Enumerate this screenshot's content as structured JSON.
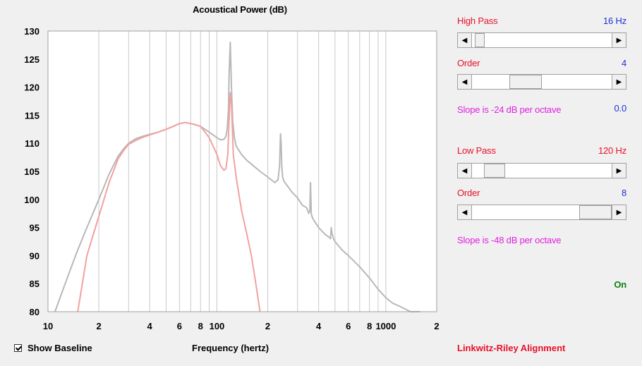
{
  "chart": {
    "title": "Acoustical Power (dB)",
    "x_axis_title": "Frequency (hertz)"
  },
  "show_baseline": {
    "label": "Show Baseline",
    "checked": true
  },
  "alignment_label": "Linkwitz-Riley Alignment",
  "status": "On",
  "high_pass": {
    "label": "High Pass",
    "value": "16 Hz",
    "order_label": "Order",
    "order_value": "4",
    "slope_text": "Slope is -24 dB per octave",
    "slope_value": "0.0",
    "slider_fraction": 0.02,
    "order_fraction": 0.35
  },
  "low_pass": {
    "label": "Low Pass",
    "value": "120 Hz",
    "order_label": "Order",
    "order_value": "8",
    "slope_text": "Slope is -48 dB per octave",
    "slider_fraction": 0.1,
    "order_fraction": 1.0
  },
  "colors": {
    "baseline_curve": "#b8b8b8",
    "filtered_curve": "#f4a0a0",
    "grid": "#c8c8c8",
    "plot_bg": "#ffffff"
  },
  "chart_data": {
    "type": "line",
    "x_scale": "log",
    "xlim": [
      10,
      2000
    ],
    "ylim": [
      80,
      130
    ],
    "y_ticks": [
      "130",
      "125",
      "120",
      "115",
      "110",
      "105",
      "100",
      "95",
      "90",
      "85",
      "80"
    ],
    "x_ticks": [
      {
        "v": 10,
        "label": "10"
      },
      {
        "v": 20,
        "label": "2"
      },
      {
        "v": 40,
        "label": "4"
      },
      {
        "v": 60,
        "label": "6"
      },
      {
        "v": 80,
        "label": "8"
      },
      {
        "v": 100,
        "label": "100"
      },
      {
        "v": 200,
        "label": "2"
      },
      {
        "v": 400,
        "label": "4"
      },
      {
        "v": 600,
        "label": "6"
      },
      {
        "v": 800,
        "label": "8"
      },
      {
        "v": 1000,
        "label": "1000"
      },
      {
        "v": 2000,
        "label": "2"
      }
    ],
    "series": [
      {
        "role": "baseline",
        "x": [
          11,
          13,
          15,
          17,
          20,
          23,
          26,
          28,
          30,
          33,
          36,
          40,
          45,
          50,
          55,
          60,
          65,
          70,
          75,
          80,
          85,
          90,
          95,
          100,
          105,
          110,
          113,
          115,
          117,
          118,
          120,
          122,
          124,
          127,
          130,
          140,
          150,
          160,
          180,
          200,
          220,
          230,
          235,
          238,
          240,
          242,
          245,
          250,
          260,
          280,
          300,
          320,
          340,
          350,
          355,
          358,
          360,
          362,
          365,
          370,
          380,
          400,
          420,
          440,
          460,
          470,
          475,
          480,
          490,
          500,
          550,
          600,
          700,
          800,
          900,
          1000,
          1100,
          1200,
          1400,
          1600
        ],
        "y": [
          80,
          86,
          91,
          95,
          100,
          104.5,
          107.7,
          109,
          110,
          110.8,
          111.2,
          111.6,
          112,
          112.5,
          113,
          113.5,
          113.7,
          113.5,
          113.3,
          113,
          112.5,
          112,
          111.5,
          111,
          110.6,
          110.7,
          111.2,
          112.5,
          116,
          122,
          128,
          120,
          114,
          111,
          109.5,
          108,
          107,
          106.3,
          105,
          104,
          103,
          103.5,
          106,
          111.7,
          110,
          106,
          104,
          103.2,
          102.5,
          101.2,
          100.3,
          99,
          98.5,
          97.5,
          98,
          103,
          100,
          97.5,
          97,
          96.6,
          96,
          95,
          94.3,
          93.7,
          93.3,
          93,
          95,
          94,
          93,
          92.5,
          91,
          90,
          88,
          86,
          84,
          82.5,
          81.5,
          81,
          80,
          80
        ]
      },
      {
        "role": "filtered",
        "x": [
          15,
          17,
          20,
          23,
          26,
          28,
          30,
          33,
          36,
          40,
          45,
          50,
          55,
          60,
          65,
          70,
          75,
          80,
          85,
          90,
          95,
          100,
          105,
          110,
          113,
          116,
          118,
          120,
          122,
          125,
          130,
          140,
          150,
          160,
          170,
          180
        ],
        "y": [
          80,
          90,
          97,
          103,
          107.2,
          108.7,
          109.8,
          110.5,
          111,
          111.5,
          112,
          112.5,
          113,
          113.5,
          113.7,
          113.5,
          113.3,
          113,
          112,
          111,
          109.5,
          108,
          106,
          105.2,
          105.5,
          108,
          114,
          119,
          117,
          108,
          104,
          98,
          94,
          90,
          85,
          80
        ]
      }
    ]
  }
}
